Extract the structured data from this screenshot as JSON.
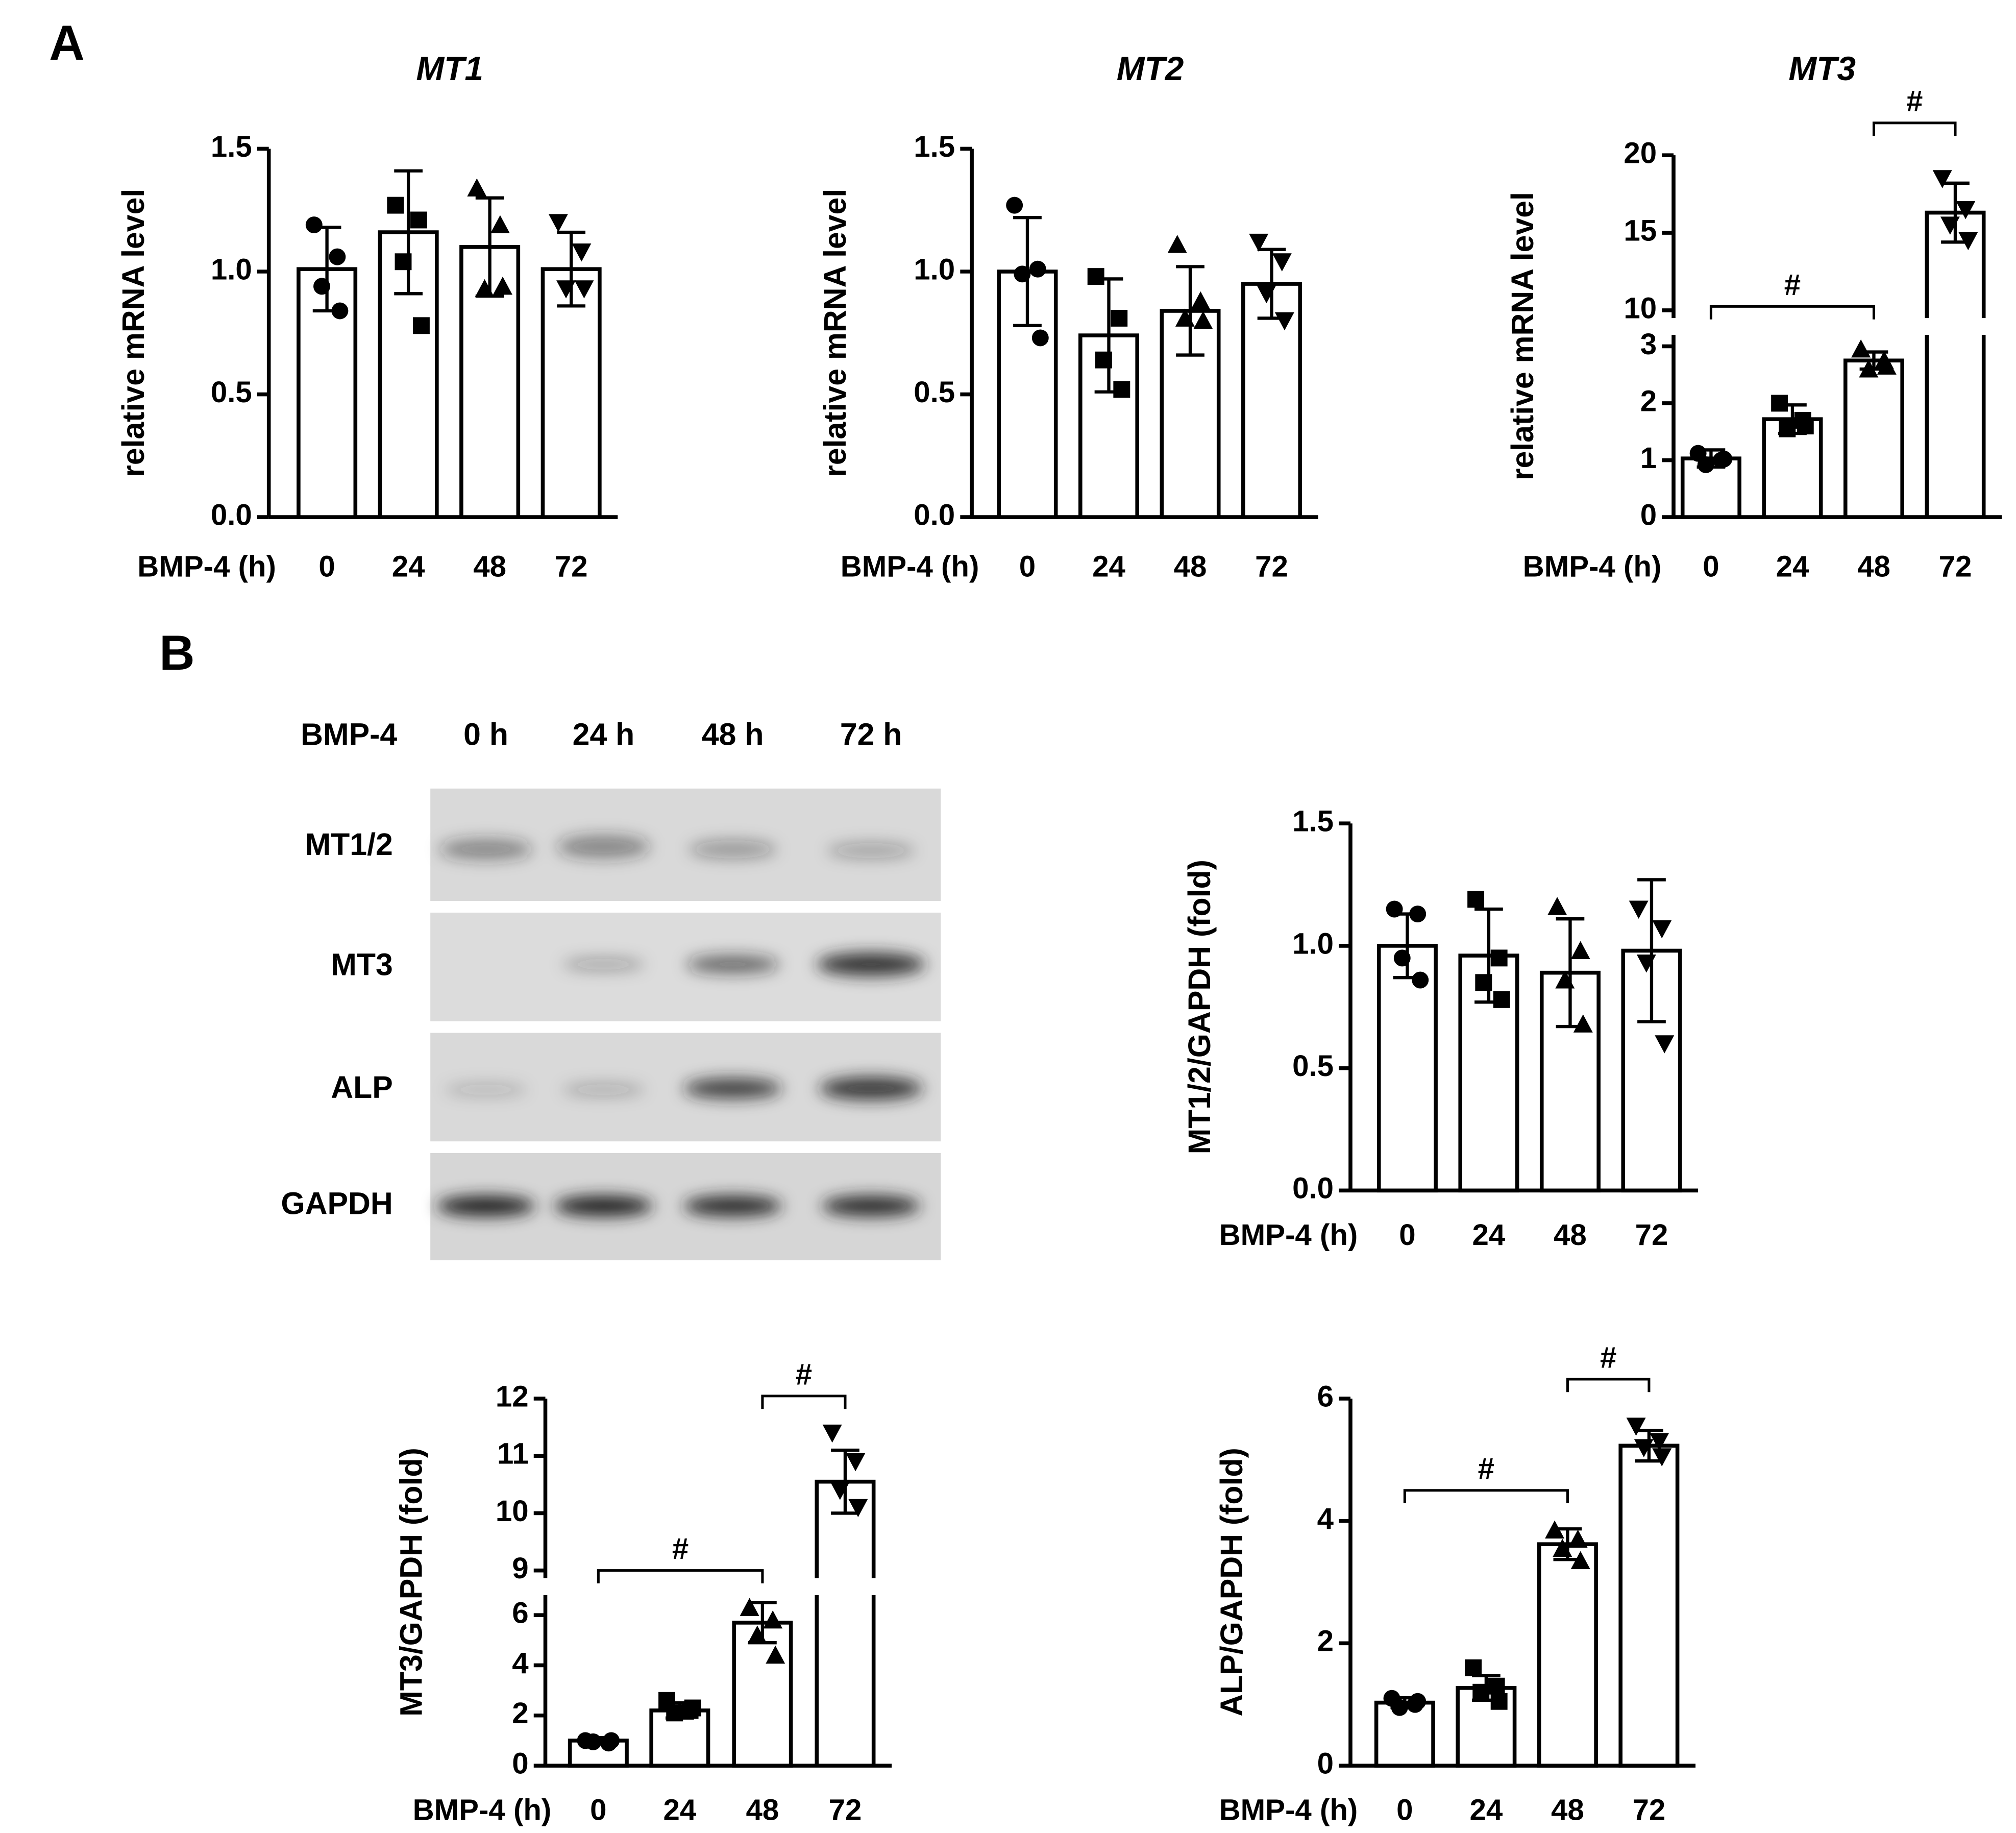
{
  "panels": [
    "A",
    "B"
  ],
  "blot": {
    "header": "BMP-4",
    "lanes": [
      "0 h",
      "24 h",
      "48 h",
      "72 h"
    ],
    "rows": [
      "MT1/2",
      "MT3",
      "ALP",
      "GAPDH"
    ]
  },
  "chart_data": [
    {
      "type": "bar",
      "title": "MT1",
      "ylabel": "relative mRNA level",
      "xlabel": "BMP-4 (h)",
      "categories": [
        "0",
        "24",
        "48",
        "72"
      ],
      "values": [
        1.01,
        1.16,
        1.1,
        1.01
      ],
      "errors": [
        0.17,
        0.25,
        0.2,
        0.15
      ],
      "points": [
        [
          1.19,
          1.06,
          0.94,
          0.84
        ],
        [
          1.27,
          1.21,
          1.04,
          0.78
        ],
        [
          1.34,
          1.19,
          0.93,
          0.94
        ],
        [
          1.2,
          1.08,
          0.93,
          0.93
        ]
      ],
      "markers": [
        "circle",
        "square",
        "triangle",
        "triangle-down"
      ],
      "color": "#ffffff",
      "ylim": [
        0,
        1.5
      ],
      "yticks": [
        {
          "value": 0,
          "label": "0.0"
        },
        {
          "value": 0.5,
          "label": "0.5"
        },
        {
          "value": 1,
          "label": "1.0"
        },
        {
          "value": 1.5,
          "label": "1.5"
        }
      ]
    },
    {
      "type": "bar",
      "title": "MT2",
      "ylabel": "relative mRNA level",
      "xlabel": "BMP-4 (h)",
      "categories": [
        "0",
        "24",
        "48",
        "72"
      ],
      "values": [
        1.0,
        0.74,
        0.84,
        0.95
      ],
      "errors": [
        0.22,
        0.23,
        0.18,
        0.14
      ],
      "points": [
        [
          1.27,
          1.01,
          0.99,
          0.73
        ],
        [
          0.98,
          0.81,
          0.64,
          0.52
        ],
        [
          1.11,
          0.88,
          0.81,
          0.8
        ],
        [
          1.12,
          1.04,
          0.91,
          0.8
        ]
      ],
      "markers": [
        "circle",
        "square",
        "triangle",
        "triangle-down"
      ],
      "color": "#ffffff",
      "ylim": [
        0,
        1.5
      ],
      "yticks": [
        {
          "value": 0,
          "label": "0.0"
        },
        {
          "value": 0.5,
          "label": "0.5"
        },
        {
          "value": 1,
          "label": "1.0"
        },
        {
          "value": 1.5,
          "label": "1.5"
        }
      ]
    },
    {
      "type": "bar",
      "title": "MT3",
      "ylabel": "relative mRNA level",
      "xlabel": "BMP-4 (h)",
      "categories": [
        "0",
        "24",
        "48",
        "72"
      ],
      "values": [
        1.03,
        1.72,
        2.75,
        16.3
      ],
      "errors": [
        0.15,
        0.25,
        0.15,
        1.9
      ],
      "points": [
        [
          1.12,
          1.0,
          0.92,
          1.02
        ],
        [
          2.0,
          1.7,
          1.55,
          1.6
        ],
        [
          2.95,
          2.75,
          2.6,
          2.65
        ],
        [
          18.5,
          16.5,
          15.5,
          14.5
        ]
      ],
      "markers": [
        "circle",
        "square",
        "triangle",
        "triangle-down"
      ],
      "color": "#ffffff",
      "ylim": [
        0,
        3.2
      ],
      "yticks": [
        0,
        1,
        2,
        3
      ],
      "y_break": {
        "ylim": [
          10,
          20
        ],
        "yticks": [
          10,
          15,
          20
        ]
      },
      "annotations": [
        {
          "label": "#",
          "from": "0",
          "to": "48"
        },
        {
          "label": "#",
          "from": "48",
          "to": "72"
        }
      ]
    },
    {
      "type": "bar",
      "ylabel": "MT1/2/GAPDH (fold)",
      "xlabel": "BMP-4 (h)",
      "categories": [
        "0",
        "24",
        "48",
        "72"
      ],
      "values": [
        1.0,
        0.96,
        0.89,
        0.98
      ],
      "errors": [
        0.13,
        0.19,
        0.22,
        0.29
      ],
      "points": [
        [
          1.15,
          1.13,
          0.95,
          0.86
        ],
        [
          1.19,
          0.95,
          0.85,
          0.78
        ],
        [
          1.16,
          0.98,
          0.86,
          0.68
        ],
        [
          1.15,
          1.07,
          0.93,
          0.6
        ]
      ],
      "markers": [
        "circle",
        "square",
        "triangle",
        "triangle-down"
      ],
      "color": "#ffffff",
      "ylim": [
        0,
        1.5
      ],
      "yticks": [
        {
          "value": 0,
          "label": "0.0"
        },
        {
          "value": 0.5,
          "label": "0.5"
        },
        {
          "value": 1,
          "label": "1.0"
        },
        {
          "value": 1.5,
          "label": "1.5"
        }
      ]
    },
    {
      "type": "bar",
      "ylabel": "MT3/GAPDH (fold)",
      "xlabel": "BMP-4 (h)",
      "categories": [
        "0",
        "24",
        "48",
        "72"
      ],
      "values": [
        1.0,
        2.2,
        5.7,
        10.55
      ],
      "errors": [
        0.12,
        0.3,
        0.8,
        0.55
      ],
      "points": [
        [
          1.0,
          0.9,
          0.95,
          1.0
        ],
        [
          2.6,
          2.2,
          2.1,
          2.3
        ],
        [
          6.3,
          5.8,
          5.2,
          4.4
        ],
        [
          11.4,
          10.9,
          10.4,
          10.1
        ]
      ],
      "markers": [
        "circle",
        "square",
        "triangle",
        "triangle-down"
      ],
      "color": "#ffffff",
      "ylim": [
        0,
        6.8
      ],
      "yticks": [
        0,
        2,
        4,
        6
      ],
      "y_break": {
        "ylim": [
          9,
          12
        ],
        "yticks": [
          9,
          10,
          11,
          12
        ]
      },
      "annotations": [
        {
          "label": "#",
          "from": "0",
          "to": "48"
        },
        {
          "label": "#",
          "from": "48",
          "to": "72"
        }
      ]
    },
    {
      "type": "bar",
      "ylabel": "ALP/GAPDH (fold)",
      "xlabel": "BMP-4 (h)",
      "categories": [
        "0",
        "24",
        "48",
        "72"
      ],
      "values": [
        1.03,
        1.27,
        3.62,
        5.23
      ],
      "errors": [
        0.08,
        0.2,
        0.25,
        0.25
      ],
      "points": [
        [
          1.1,
          1.0,
          0.95,
          1.05
        ],
        [
          1.6,
          1.3,
          1.2,
          1.05
        ],
        [
          3.85,
          3.7,
          3.55,
          3.35
        ],
        [
          5.55,
          5.3,
          5.2,
          5.05
        ]
      ],
      "markers": [
        "circle",
        "square",
        "triangle",
        "triangle-down"
      ],
      "color": "#ffffff",
      "ylim": [
        0,
        6
      ],
      "yticks": [
        0,
        2,
        4,
        6
      ],
      "annotations": [
        {
          "label": "#",
          "from": "0",
          "to": "48"
        },
        {
          "label": "#",
          "from": "48",
          "to": "72"
        }
      ]
    }
  ]
}
